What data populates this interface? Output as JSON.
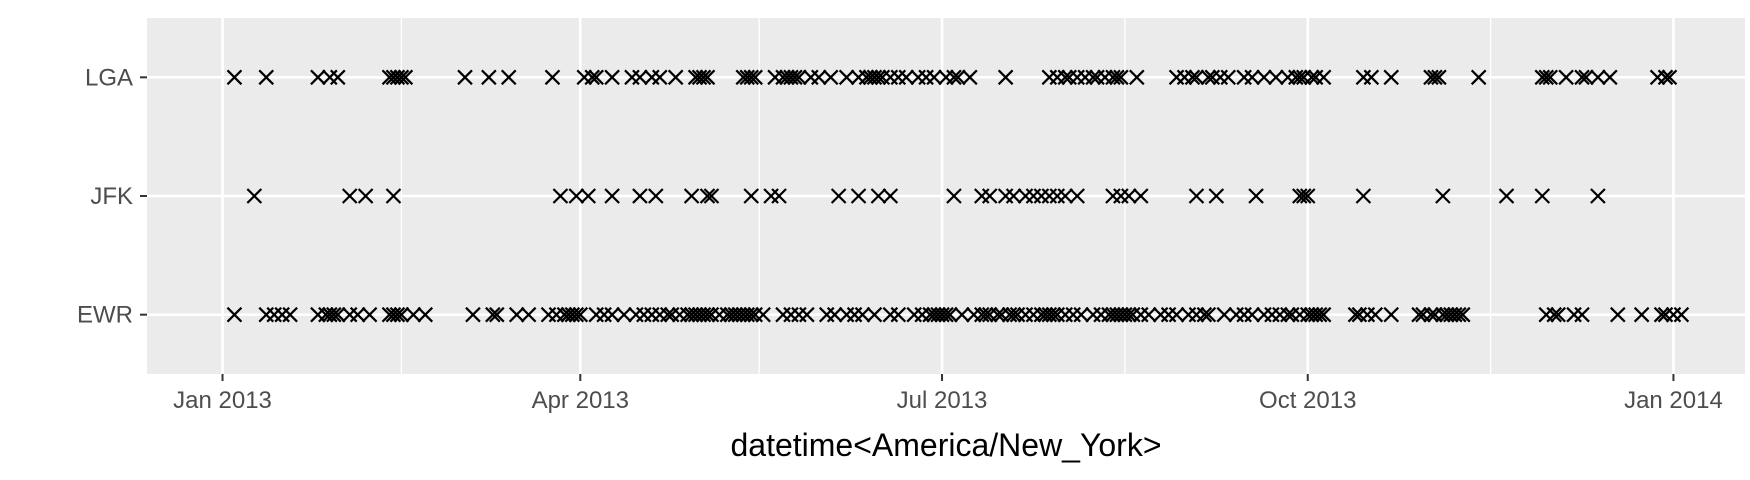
{
  "chart_data": {
    "type": "scatter",
    "xlabel": "datetime<America/New_York>",
    "ylabel": "",
    "x_ticks": [
      "Jan 2013",
      "Apr 2013",
      "Jul 2013",
      "Oct 2013",
      "Jan 2014"
    ],
    "x_tick_dates": [
      "2013-01-01",
      "2013-04-01",
      "2013-07-01",
      "2013-10-01",
      "2014-01-01"
    ],
    "x_minor_dates": [
      "2013-02-15",
      "2013-05-16",
      "2013-08-16",
      "2013-11-16"
    ],
    "xlim": [
      "2012-12-13",
      "2014-01-19"
    ],
    "categories": [
      "EWR",
      "JFK",
      "LGA"
    ],
    "marker": "x",
    "grid": true,
    "colors": {
      "panel": "#ebebeb",
      "grid": "#ffffff",
      "point": "#000000",
      "tick_text": "#4d4d4d"
    },
    "series": [
      {
        "category": "LGA",
        "x": [
          "2013-01-04",
          "2013-01-12",
          "2013-01-25",
          "2013-01-28",
          "2013-01-30",
          "2013-02-12",
          "2013-02-13",
          "2013-02-14",
          "2013-02-15",
          "2013-02-16",
          "2013-03-03",
          "2013-03-09",
          "2013-03-14",
          "2013-03-25",
          "2013-04-02",
          "2013-04-04",
          "2013-04-05",
          "2013-04-09",
          "2013-04-14",
          "2013-04-16",
          "2013-04-19",
          "2013-04-21",
          "2013-04-25",
          "2013-04-30",
          "2013-05-01",
          "2013-05-02",
          "2013-05-03",
          "2013-05-12",
          "2013-05-13",
          "2013-05-14",
          "2013-05-15",
          "2013-05-20",
          "2013-05-22",
          "2013-05-23",
          "2013-05-24",
          "2013-05-25",
          "2013-05-26",
          "2013-05-29",
          "2013-05-31",
          "2013-06-03",
          "2013-06-07",
          "2013-06-10",
          "2013-06-12",
          "2013-06-13",
          "2013-06-14",
          "2013-06-15",
          "2013-06-16",
          "2013-06-18",
          "2013-06-20",
          "2013-06-22",
          "2013-06-25",
          "2013-06-27",
          "2013-06-29",
          "2013-07-02",
          "2013-07-04",
          "2013-07-05",
          "2013-07-08",
          "2013-07-17",
          "2013-07-28",
          "2013-07-30",
          "2013-08-01",
          "2013-08-02",
          "2013-08-04",
          "2013-08-06",
          "2013-08-08",
          "2013-08-09",
          "2013-08-11",
          "2013-08-13",
          "2013-08-14",
          "2013-08-15",
          "2013-08-19",
          "2013-08-29",
          "2013-08-31",
          "2013-09-02",
          "2013-09-03",
          "2013-09-06",
          "2013-09-07",
          "2013-09-09",
          "2013-09-11",
          "2013-09-15",
          "2013-09-17",
          "2013-09-20",
          "2013-09-23",
          "2013-09-26",
          "2013-09-28",
          "2013-09-29",
          "2013-09-30",
          "2013-10-02",
          "2013-10-03",
          "2013-10-05",
          "2013-10-15",
          "2013-10-17",
          "2013-10-22",
          "2013-11-01",
          "2013-11-02",
          "2013-11-03",
          "2013-11-13",
          "2013-11-29",
          "2013-11-30",
          "2013-12-01",
          "2013-12-05",
          "2013-12-09",
          "2013-12-10",
          "2013-12-13",
          "2013-12-16",
          "2013-12-28",
          "2013-12-30",
          "2013-12-31"
        ]
      },
      {
        "category": "JFK",
        "x": [
          "2013-01-09",
          "2013-02-02",
          "2013-02-06",
          "2013-02-13",
          "2013-03-27",
          "2013-03-31",
          "2013-04-03",
          "2013-04-09",
          "2013-04-16",
          "2013-04-20",
          "2013-04-29",
          "2013-05-03",
          "2013-05-04",
          "2013-05-14",
          "2013-05-19",
          "2013-05-21",
          "2013-06-05",
          "2013-06-10",
          "2013-06-15",
          "2013-06-18",
          "2013-07-04",
          "2013-07-11",
          "2013-07-13",
          "2013-07-17",
          "2013-07-19",
          "2013-07-22",
          "2013-07-24",
          "2013-07-26",
          "2013-07-28",
          "2013-07-30",
          "2013-08-01",
          "2013-08-04",
          "2013-08-13",
          "2013-08-15",
          "2013-08-17",
          "2013-08-20",
          "2013-09-03",
          "2013-09-08",
          "2013-09-18",
          "2013-09-29",
          "2013-09-30",
          "2013-10-01",
          "2013-10-15",
          "2013-11-04",
          "2013-11-20",
          "2013-11-29",
          "2013-12-13"
        ]
      },
      {
        "category": "EWR",
        "x": [
          "2013-01-04",
          "2013-01-12",
          "2013-01-14",
          "2013-01-16",
          "2013-01-18",
          "2013-01-25",
          "2013-01-27",
          "2013-01-28",
          "2013-01-29",
          "2013-01-30",
          "2013-02-02",
          "2013-02-04",
          "2013-02-07",
          "2013-02-12",
          "2013-02-13",
          "2013-02-14",
          "2013-02-15",
          "2013-02-18",
          "2013-02-21",
          "2013-03-05",
          "2013-03-10",
          "2013-03-11",
          "2013-03-16",
          "2013-03-19",
          "2013-03-24",
          "2013-03-26",
          "2013-03-28",
          "2013-03-29",
          "2013-03-30",
          "2013-03-31",
          "2013-04-01",
          "2013-04-05",
          "2013-04-07",
          "2013-04-09",
          "2013-04-12",
          "2013-04-15",
          "2013-04-17",
          "2013-04-19",
          "2013-04-21",
          "2013-04-23",
          "2013-04-24",
          "2013-04-26",
          "2013-04-28",
          "2013-04-29",
          "2013-04-30",
          "2013-05-01",
          "2013-05-02",
          "2013-05-03",
          "2013-05-04",
          "2013-05-06",
          "2013-05-08",
          "2013-05-09",
          "2013-05-10",
          "2013-05-11",
          "2013-05-12",
          "2013-05-13",
          "2013-05-14",
          "2013-05-15",
          "2013-05-17",
          "2013-05-22",
          "2013-05-24",
          "2013-05-26",
          "2013-05-28",
          "2013-06-02",
          "2013-06-04",
          "2013-06-07",
          "2013-06-09",
          "2013-06-11",
          "2013-06-14",
          "2013-06-18",
          "2013-06-20",
          "2013-06-24",
          "2013-06-26",
          "2013-06-28",
          "2013-06-29",
          "2013-06-30",
          "2013-07-01",
          "2013-07-02",
          "2013-07-03",
          "2013-07-06",
          "2013-07-09",
          "2013-07-11",
          "2013-07-12",
          "2013-07-13",
          "2013-07-15",
          "2013-07-16",
          "2013-07-18",
          "2013-07-19",
          "2013-07-20",
          "2013-07-22",
          "2013-07-24",
          "2013-07-26",
          "2013-07-27",
          "2013-07-28",
          "2013-07-29",
          "2013-07-30",
          "2013-08-01",
          "2013-08-03",
          "2013-08-05",
          "2013-08-08",
          "2013-08-10",
          "2013-08-12",
          "2013-08-13",
          "2013-08-14",
          "2013-08-15",
          "2013-08-16",
          "2013-08-17",
          "2013-08-18",
          "2013-08-20",
          "2013-08-22",
          "2013-08-25",
          "2013-08-27",
          "2013-08-29",
          "2013-09-01",
          "2013-09-03",
          "2013-09-05",
          "2013-09-06",
          "2013-09-10",
          "2013-09-13",
          "2013-09-15",
          "2013-09-17",
          "2013-09-20",
          "2013-09-22",
          "2013-09-24",
          "2013-09-26",
          "2013-09-27",
          "2013-09-29",
          "2013-10-01",
          "2013-10-02",
          "2013-10-03",
          "2013-10-04",
          "2013-10-05",
          "2013-10-13",
          "2013-10-14",
          "2013-10-16",
          "2013-10-18",
          "2013-10-22",
          "2013-10-29",
          "2013-10-30",
          "2013-11-01",
          "2013-11-02",
          "2013-11-04",
          "2013-11-05",
          "2013-11-06",
          "2013-11-07",
          "2013-11-08",
          "2013-11-09",
          "2013-11-30",
          "2013-12-02",
          "2013-12-03",
          "2013-12-07",
          "2013-12-09",
          "2013-12-18",
          "2013-12-24",
          "2013-12-29",
          "2013-12-30",
          "2014-01-01",
          "2014-01-03"
        ]
      }
    ]
  }
}
